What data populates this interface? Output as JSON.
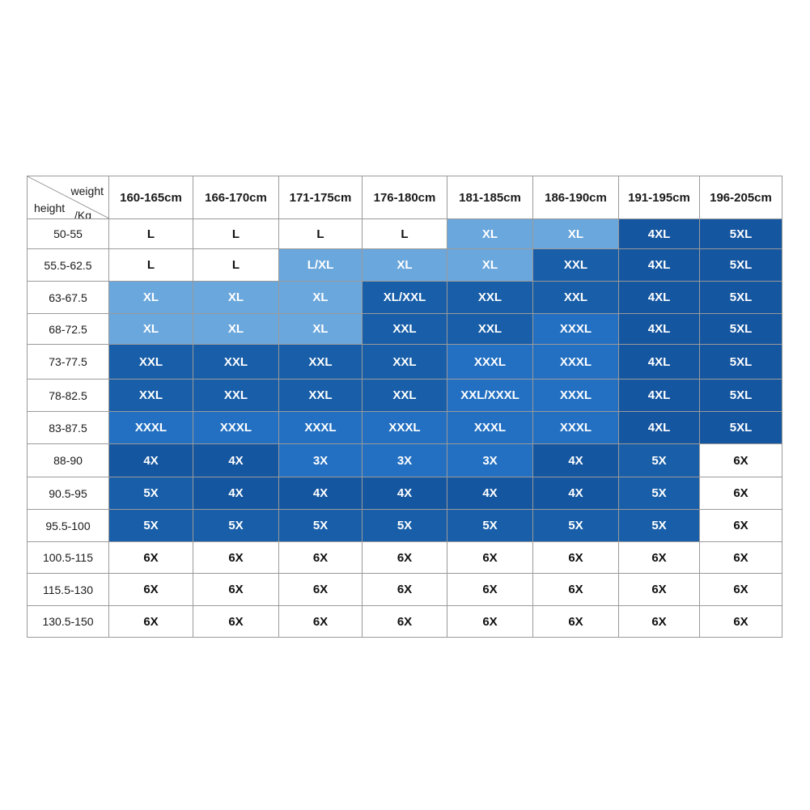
{
  "corner": {
    "weight_label": "weight",
    "height_label": "height",
    "kg_label": "/Kg"
  },
  "columns": [
    "160-165cm",
    "166-170cm",
    "171-175cm",
    "176-180cm",
    "181-185cm",
    "186-190cm",
    "191-195cm",
    "196-205cm"
  ],
  "rows": [
    {
      "label": "50-55",
      "cells": [
        {
          "v": "L",
          "c": "white"
        },
        {
          "v": "L",
          "c": "white"
        },
        {
          "v": "L",
          "c": "white"
        },
        {
          "v": "L",
          "c": "white"
        },
        {
          "v": "XL",
          "c": "light"
        },
        {
          "v": "XL",
          "c": "light"
        },
        {
          "v": "4XL",
          "c": "deep"
        },
        {
          "v": "5XL",
          "c": "deep"
        }
      ]
    },
    {
      "label": "55.5-62.5",
      "cells": [
        {
          "v": "L",
          "c": "white"
        },
        {
          "v": "L",
          "c": "white"
        },
        {
          "v": "L/XL",
          "c": "light"
        },
        {
          "v": "XL",
          "c": "light"
        },
        {
          "v": "XL",
          "c": "light"
        },
        {
          "v": "XXL",
          "c": "dark"
        },
        {
          "v": "4XL",
          "c": "deep"
        },
        {
          "v": "5XL",
          "c": "deep"
        }
      ]
    },
    {
      "label": "63-67.5",
      "cells": [
        {
          "v": "XL",
          "c": "light"
        },
        {
          "v": "XL",
          "c": "light"
        },
        {
          "v": "XL",
          "c": "light"
        },
        {
          "v": "XL/XXL",
          "c": "dark"
        },
        {
          "v": "XXL",
          "c": "dark"
        },
        {
          "v": "XXL",
          "c": "dark"
        },
        {
          "v": "4XL",
          "c": "deep"
        },
        {
          "v": "5XL",
          "c": "deep"
        }
      ]
    },
    {
      "label": "68-72.5",
      "cells": [
        {
          "v": "XL",
          "c": "light"
        },
        {
          "v": "XL",
          "c": "light"
        },
        {
          "v": "XL",
          "c": "light"
        },
        {
          "v": "XXL",
          "c": "dark"
        },
        {
          "v": "XXL",
          "c": "dark"
        },
        {
          "v": "XXXL",
          "c": "mid"
        },
        {
          "v": "4XL",
          "c": "deep"
        },
        {
          "v": "5XL",
          "c": "deep"
        }
      ]
    },
    {
      "label": "73-77.5",
      "cells": [
        {
          "v": "XXL",
          "c": "dark"
        },
        {
          "v": "XXL",
          "c": "dark"
        },
        {
          "v": "XXL",
          "c": "dark"
        },
        {
          "v": "XXL",
          "c": "dark"
        },
        {
          "v": "XXXL",
          "c": "mid"
        },
        {
          "v": "XXXL",
          "c": "mid"
        },
        {
          "v": "4XL",
          "c": "deep"
        },
        {
          "v": "5XL",
          "c": "deep"
        }
      ]
    },
    {
      "label": "78-82.5",
      "cells": [
        {
          "v": "XXL",
          "c": "dark"
        },
        {
          "v": "XXL",
          "c": "dark"
        },
        {
          "v": "XXL",
          "c": "dark"
        },
        {
          "v": "XXL",
          "c": "dark"
        },
        {
          "v": "XXL/XXXL",
          "c": "mid"
        },
        {
          "v": "XXXL",
          "c": "mid"
        },
        {
          "v": "4XL",
          "c": "deep"
        },
        {
          "v": "5XL",
          "c": "deep"
        }
      ]
    },
    {
      "label": "83-87.5",
      "cells": [
        {
          "v": "XXXL",
          "c": "mid"
        },
        {
          "v": "XXXL",
          "c": "mid"
        },
        {
          "v": "XXXL",
          "c": "mid"
        },
        {
          "v": "XXXL",
          "c": "mid"
        },
        {
          "v": "XXXL",
          "c": "mid"
        },
        {
          "v": "XXXL",
          "c": "mid"
        },
        {
          "v": "4XL",
          "c": "deep"
        },
        {
          "v": "5XL",
          "c": "deep"
        }
      ]
    },
    {
      "label": "88-90",
      "cells": [
        {
          "v": "4X",
          "c": "deep"
        },
        {
          "v": "4X",
          "c": "deep"
        },
        {
          "v": "3X",
          "c": "mid"
        },
        {
          "v": "3X",
          "c": "mid"
        },
        {
          "v": "3X",
          "c": "mid"
        },
        {
          "v": "4X",
          "c": "deep"
        },
        {
          "v": "5X",
          "c": "dark"
        },
        {
          "v": "6X",
          "c": "white"
        }
      ]
    },
    {
      "label": "90.5-95",
      "cells": [
        {
          "v": "5X",
          "c": "dark"
        },
        {
          "v": "4X",
          "c": "deep"
        },
        {
          "v": "4X",
          "c": "deep"
        },
        {
          "v": "4X",
          "c": "deep"
        },
        {
          "v": "4X",
          "c": "deep"
        },
        {
          "v": "4X",
          "c": "deep"
        },
        {
          "v": "5X",
          "c": "dark"
        },
        {
          "v": "6X",
          "c": "white"
        }
      ]
    },
    {
      "label": "95.5-100",
      "cells": [
        {
          "v": "5X",
          "c": "dark"
        },
        {
          "v": "5X",
          "c": "dark"
        },
        {
          "v": "5X",
          "c": "dark"
        },
        {
          "v": "5X",
          "c": "dark"
        },
        {
          "v": "5X",
          "c": "dark"
        },
        {
          "v": "5X",
          "c": "dark"
        },
        {
          "v": "5X",
          "c": "dark"
        },
        {
          "v": "6X",
          "c": "white"
        }
      ]
    },
    {
      "label": "100.5-115",
      "cells": [
        {
          "v": "6X",
          "c": "white"
        },
        {
          "v": "6X",
          "c": "white"
        },
        {
          "v": "6X",
          "c": "white"
        },
        {
          "v": "6X",
          "c": "white"
        },
        {
          "v": "6X",
          "c": "white"
        },
        {
          "v": "6X",
          "c": "white"
        },
        {
          "v": "6X",
          "c": "white"
        },
        {
          "v": "6X",
          "c": "white"
        }
      ]
    },
    {
      "label": "115.5-130",
      "cells": [
        {
          "v": "6X",
          "c": "white"
        },
        {
          "v": "6X",
          "c": "white"
        },
        {
          "v": "6X",
          "c": "white"
        },
        {
          "v": "6X",
          "c": "white"
        },
        {
          "v": "6X",
          "c": "white"
        },
        {
          "v": "6X",
          "c": "white"
        },
        {
          "v": "6X",
          "c": "white"
        },
        {
          "v": "6X",
          "c": "white"
        }
      ]
    },
    {
      "label": "130.5-150",
      "cells": [
        {
          "v": "6X",
          "c": "white"
        },
        {
          "v": "6X",
          "c": "white"
        },
        {
          "v": "6X",
          "c": "white"
        },
        {
          "v": "6X",
          "c": "white"
        },
        {
          "v": "6X",
          "c": "white"
        },
        {
          "v": "6X",
          "c": "white"
        },
        {
          "v": "6X",
          "c": "white"
        },
        {
          "v": "6X",
          "c": "white"
        }
      ]
    }
  ],
  "colors": {
    "white": "#ffffff",
    "light": "#6aa7dc",
    "mid": "#2370c2",
    "dark": "#185ea8",
    "deep": "#1556a0"
  }
}
